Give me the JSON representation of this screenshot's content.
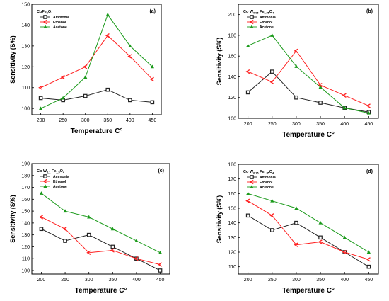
{
  "colors": {
    "ammonia": "#222222",
    "ethanol": "#ff2020",
    "acetone": "#1a9a1a"
  },
  "chart_data": [
    {
      "type": "line",
      "panel_label": "(a)",
      "composition": [
        [
          "CoFe",
          ""
        ],
        [
          "2",
          "sub"
        ],
        [
          "O",
          ""
        ],
        [
          "4",
          "sub"
        ]
      ],
      "xlabel": "Temperature C°",
      "ylabel": "Sensitivity (S%)",
      "x": [
        200,
        250,
        300,
        350,
        400,
        450
      ],
      "xlim": [
        180,
        470
      ],
      "ylim": [
        97,
        150
      ],
      "yticks": [
        100,
        110,
        120,
        130,
        140,
        150
      ],
      "legend_position": "top-left",
      "series": [
        {
          "name": "Ammonia",
          "values": [
            105,
            104,
            106,
            109,
            104,
            103
          ]
        },
        {
          "name": "Ethanol",
          "values": [
            110,
            115,
            120,
            135,
            125,
            114
          ]
        },
        {
          "name": "Acetone",
          "values": [
            100,
            105,
            115,
            145,
            130,
            120
          ]
        }
      ]
    },
    {
      "type": "line",
      "panel_label": "(b)",
      "composition": [
        [
          "Co W",
          ""
        ],
        [
          "0.05",
          "sub"
        ],
        [
          " Fe",
          ""
        ],
        [
          "1.95",
          "sub"
        ],
        [
          "O",
          ""
        ],
        [
          "4",
          "sub"
        ]
      ],
      "xlabel": "Temperature C°",
      "ylabel": "Sensitivity (S%)",
      "x": [
        200,
        250,
        300,
        350,
        400,
        450
      ],
      "xlim": [
        180,
        470
      ],
      "ylim": [
        100,
        210
      ],
      "yticks": [
        100,
        120,
        140,
        160,
        180,
        200
      ],
      "legend_position": "top-left",
      "series": [
        {
          "name": "Ammonia",
          "values": [
            125,
            145,
            120,
            115,
            110,
            106
          ]
        },
        {
          "name": "Ethanol",
          "values": [
            145,
            135,
            165,
            132,
            122,
            112
          ]
        },
        {
          "name": "Acetone",
          "values": [
            170,
            180,
            150,
            130,
            110,
            105
          ]
        }
      ]
    },
    {
      "type": "line",
      "panel_label": "(c)",
      "composition": [
        [
          "Co W",
          ""
        ],
        [
          "0.1",
          "sub"
        ],
        [
          " Fe",
          ""
        ],
        [
          "1.9",
          "sub"
        ],
        [
          "O",
          ""
        ],
        [
          "4",
          "sub"
        ]
      ],
      "xlabel": "Temperature C°",
      "ylabel": "Sensitivity (S%)",
      "x": [
        200,
        250,
        300,
        350,
        400,
        450
      ],
      "xlim": [
        180,
        470
      ],
      "ylim": [
        97,
        190
      ],
      "yticks": [
        100,
        110,
        120,
        130,
        140,
        150,
        160,
        170,
        180,
        190
      ],
      "legend_position": "top-left",
      "series": [
        {
          "name": "Ammonia",
          "values": [
            135,
            125,
            130,
            120,
            110,
            100
          ]
        },
        {
          "name": "Ethanol",
          "values": [
            145,
            135,
            115,
            117,
            110,
            105
          ]
        },
        {
          "name": "Acetone",
          "values": [
            165,
            150,
            145,
            135,
            125,
            115
          ]
        }
      ]
    },
    {
      "type": "line",
      "panel_label": "(d)",
      "composition": [
        [
          "Co W",
          ""
        ],
        [
          "0.15",
          "sub"
        ],
        [
          " Fe",
          ""
        ],
        [
          "1.85",
          "sub"
        ],
        [
          "O",
          ""
        ],
        [
          "4",
          "sub"
        ]
      ],
      "xlabel": "Temperature C°",
      "ylabel": "Sensitivity (S%)",
      "x": [
        200,
        250,
        300,
        350,
        400,
        450
      ],
      "xlim": [
        180,
        470
      ],
      "ylim": [
        105,
        180
      ],
      "yticks": [
        110,
        120,
        130,
        140,
        150,
        160,
        170,
        180
      ],
      "legend_position": "top-left",
      "series": [
        {
          "name": "Ammonia",
          "values": [
            145,
            135,
            140,
            130,
            120,
            110
          ]
        },
        {
          "name": "Ethanol",
          "values": [
            155,
            145,
            125,
            127,
            120,
            115
          ]
        },
        {
          "name": "Acetone",
          "values": [
            160,
            155,
            150,
            140,
            130,
            120
          ]
        }
      ]
    }
  ]
}
